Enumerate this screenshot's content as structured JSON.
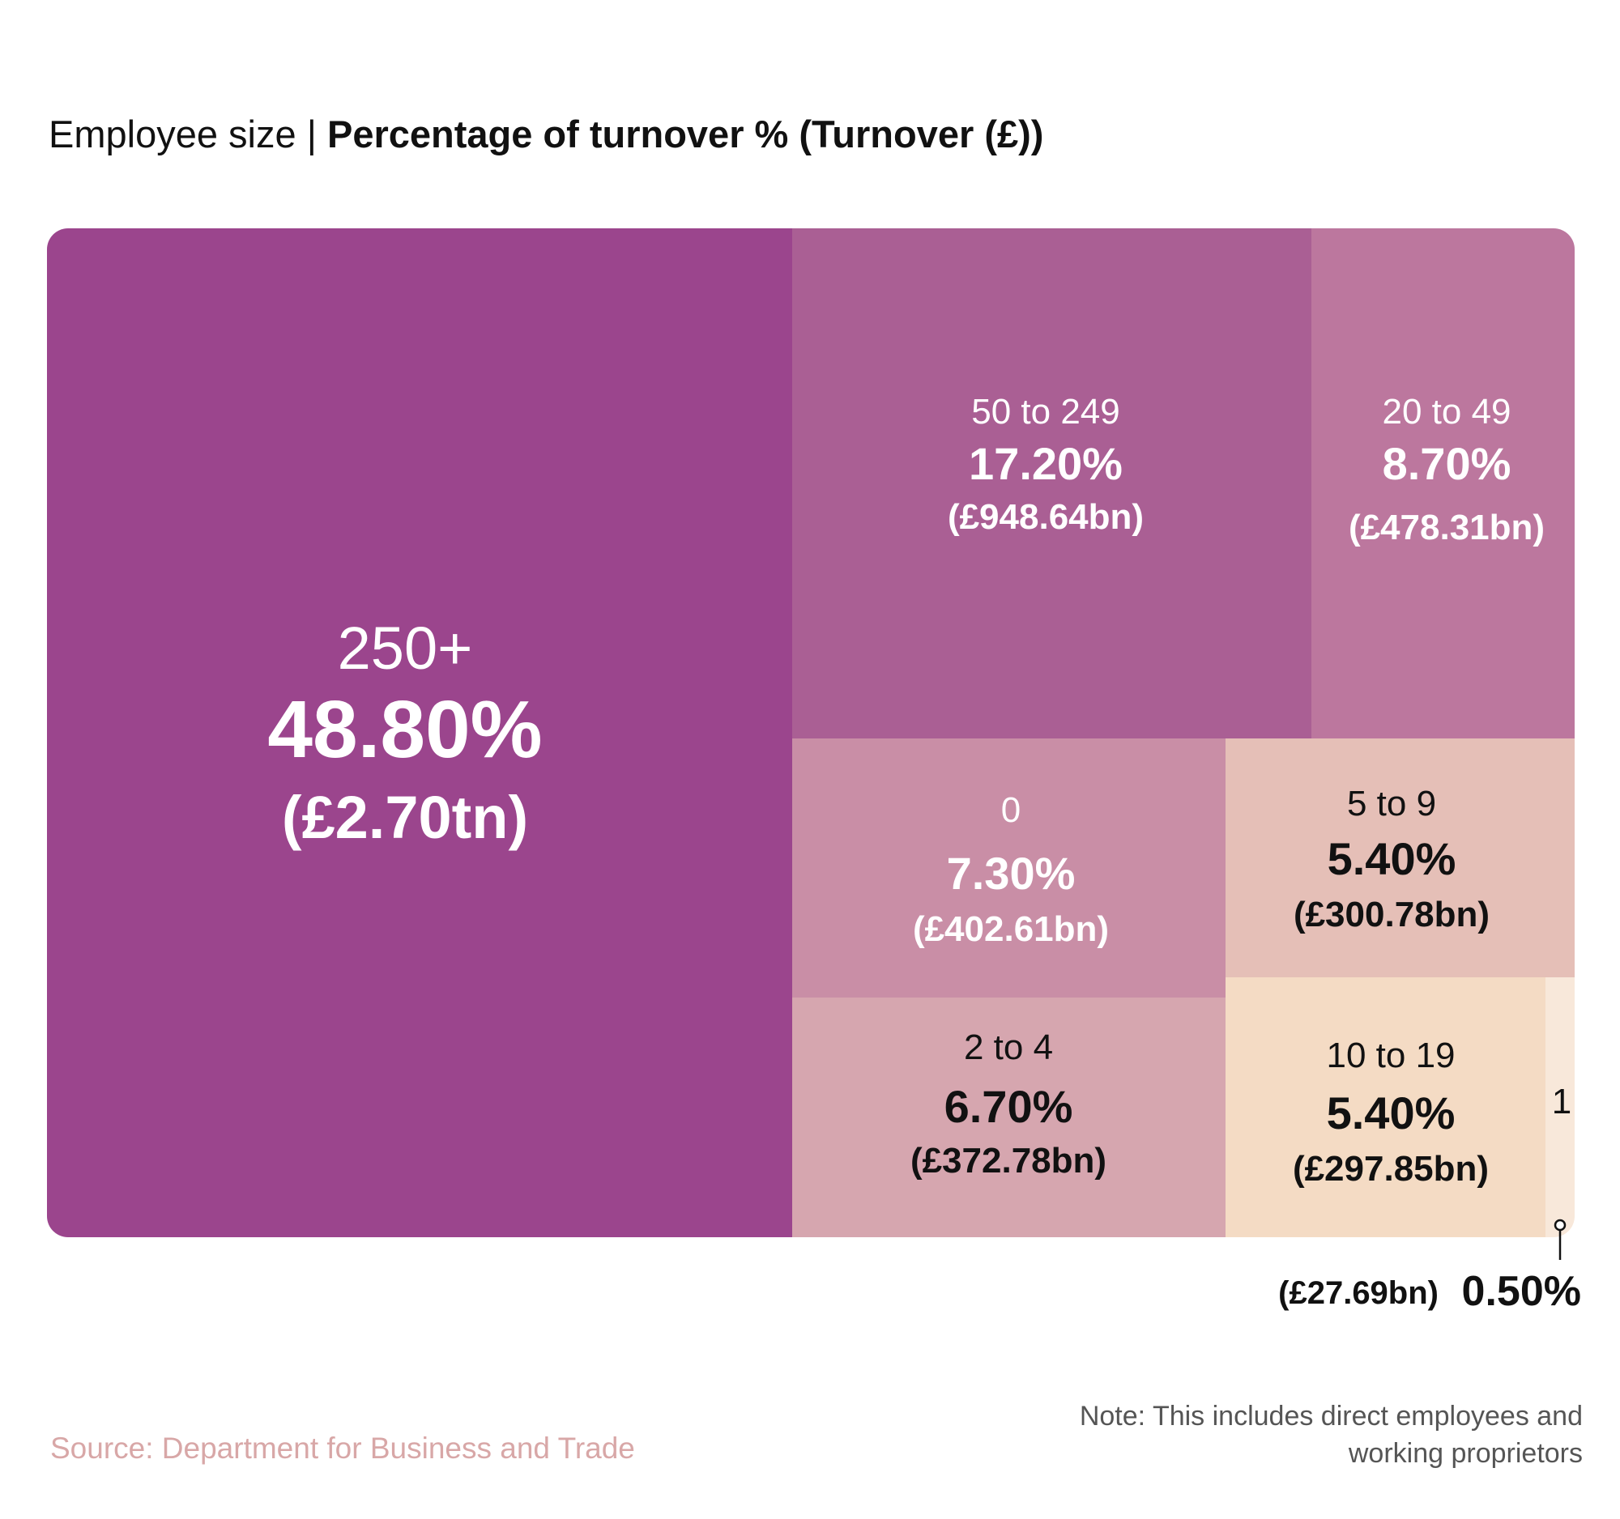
{
  "title": {
    "prefix": "Employee size | ",
    "main": "Percentage of turnover % (Turnover (£))"
  },
  "chart_data": {
    "type": "treemap",
    "unit": "%",
    "items": [
      {
        "label": "250+",
        "percent": 48.8,
        "percent_label": "48.80%",
        "value_label": "(£2.70tn)",
        "color": "#9b458d"
      },
      {
        "label": "50 to 249",
        "percent": 17.2,
        "percent_label": "17.20%",
        "value_label": "(£948.64bn)",
        "color": "#aa5f94"
      },
      {
        "label": "20 to 49",
        "percent": 8.7,
        "percent_label": "8.70%",
        "value_label": "(£478.31bn)",
        "color": "#bc779e"
      },
      {
        "label": "0",
        "percent": 7.3,
        "percent_label": "7.30%",
        "value_label": "(£402.61bn)",
        "color": "#c98ea6"
      },
      {
        "label": "2 to 4",
        "percent": 6.7,
        "percent_label": "6.70%",
        "value_label": "(£372.78bn)",
        "color": "#d6a6af"
      },
      {
        "label": "5 to 9",
        "percent": 5.4,
        "percent_label": "5.40%",
        "value_label": "(£300.78bn)",
        "color": "#e5bfb7"
      },
      {
        "label": "10 to 19",
        "percent": 5.4,
        "percent_label": "5.40%",
        "value_label": "(£297.85bn)",
        "color": "#f4dbc4"
      },
      {
        "label": "1",
        "percent": 0.5,
        "percent_label": "0.50%",
        "value_label": "(£27.69bn)",
        "color": "#f8e8da"
      }
    ]
  },
  "source": "Source: Department for Business and Trade",
  "note": "Note: This includes direct employees and working proprietors"
}
